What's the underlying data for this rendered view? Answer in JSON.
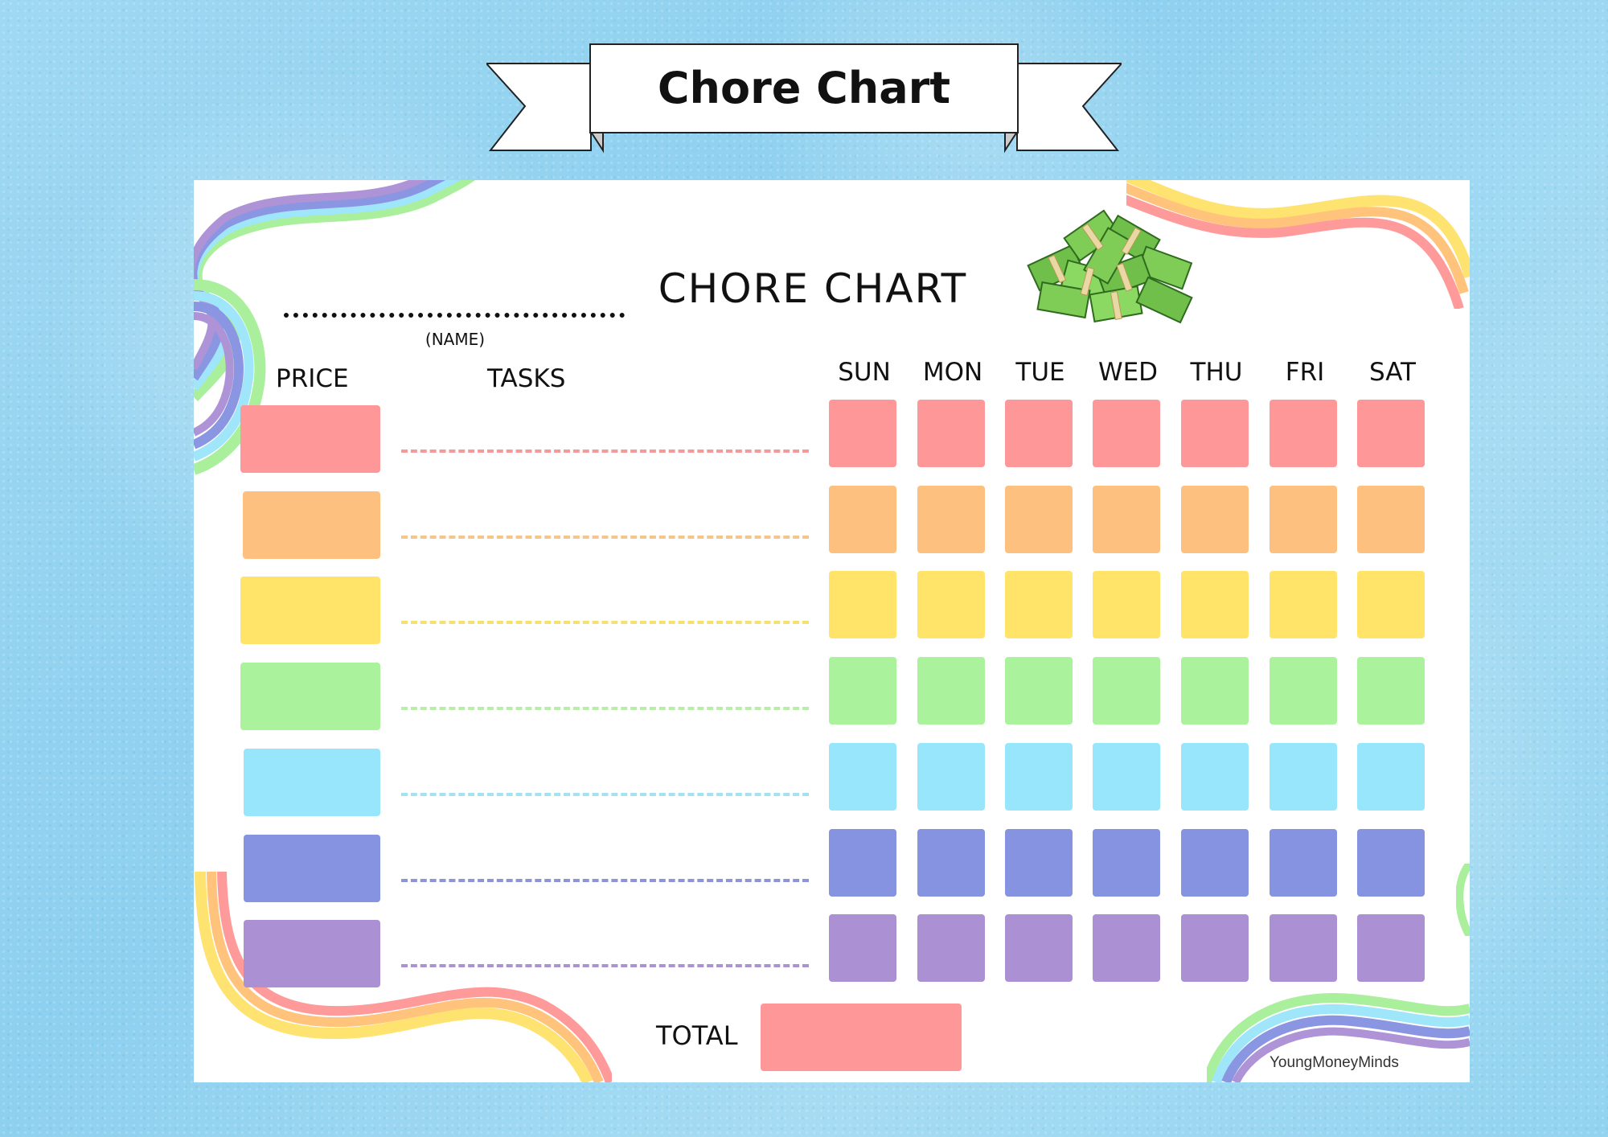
{
  "banner": {
    "title": "Chore Chart"
  },
  "sheet": {
    "heading": "CHORE CHART",
    "name_caption": "(NAME)",
    "price_header": "PRICE",
    "tasks_header": "TASKS",
    "days": [
      "SUN",
      "MON",
      "TUE",
      "WED",
      "THU",
      "FRI",
      "SAT"
    ],
    "total_label": "TOTAL",
    "credit": "YoungMoneyMinds"
  },
  "row_colors": [
    "#fe9797",
    "#fec07f",
    "#ffe469",
    "#aaf29c",
    "#98e6fb",
    "#8693e0",
    "#ab91d3"
  ],
  "line_colors": [
    "#f39a9a",
    "#f6c58c",
    "#f6e070",
    "#b8eea8",
    "#a2e2f2",
    "#8d95d8",
    "#a993d0"
  ],
  "rainbow_colors": [
    "#ff9a9a",
    "#ffc37c",
    "#ffe370",
    "#a9ef9c",
    "#9fe6fb",
    "#8b96e2",
    "#ae93d6"
  ],
  "icons": {
    "money": "money-pile-icon"
  }
}
